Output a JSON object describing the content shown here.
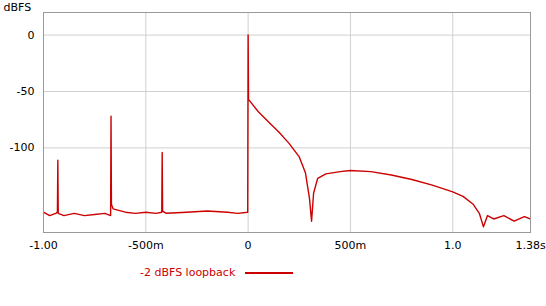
{
  "chart_data": {
    "type": "line",
    "y_label": "dBFS",
    "x": [
      -1.0,
      -0.97,
      -0.94,
      -0.932,
      -0.93,
      -0.928,
      -0.9,
      -0.85,
      -0.8,
      -0.75,
      -0.7,
      -0.672,
      -0.67,
      -0.668,
      -0.66,
      -0.6,
      -0.55,
      -0.5,
      -0.45,
      -0.422,
      -0.42,
      -0.418,
      -0.4,
      -0.3,
      -0.2,
      -0.1,
      -0.05,
      -0.002,
      0.0,
      0.002,
      0.05,
      0.1,
      0.15,
      0.2,
      0.25,
      0.28,
      0.3,
      0.31,
      0.32,
      0.34,
      0.38,
      0.45,
      0.5,
      0.6,
      0.7,
      0.8,
      0.9,
      1.0,
      1.05,
      1.1,
      1.13,
      1.15,
      1.17,
      1.2,
      1.25,
      1.3,
      1.35,
      1.38
    ],
    "series": [
      {
        "name": "-2 dBFS loopback",
        "color": "#cc0000",
        "values": [
          -157,
          -160,
          -158,
          -157,
          -111,
          -158,
          -160,
          -158,
          -160,
          -159,
          -158,
          -160,
          -72,
          -150,
          -154,
          -157,
          -158,
          -157,
          -158,
          -157,
          -104,
          -156,
          -158,
          -157,
          -156,
          -157,
          -158,
          -157,
          0,
          -57,
          -68,
          -77,
          -86,
          -96,
          -108,
          -122,
          -145,
          -165,
          -140,
          -127,
          -123,
          -121,
          -120,
          -121,
          -124,
          -128,
          -133,
          -139,
          -143,
          -150,
          -158,
          -170,
          -160,
          -163,
          -160,
          -165,
          -161,
          -163
        ]
      }
    ],
    "xlim": [
      -1.0,
      1.38
    ],
    "xticks": [
      {
        "value": -1.0,
        "label": "-1.00"
      },
      {
        "value": -0.5,
        "label": "-500m"
      },
      0,
      {
        "value": 0.5,
        "label": "500m"
      },
      {
        "value": 1.0,
        "label": "1.0"
      },
      {
        "value": 1.38,
        "label": "1.38s"
      }
    ],
    "ylim": [
      -175,
      20
    ],
    "yticks": [
      0,
      -50,
      -100
    ],
    "grid": true,
    "legend": "bottom"
  }
}
